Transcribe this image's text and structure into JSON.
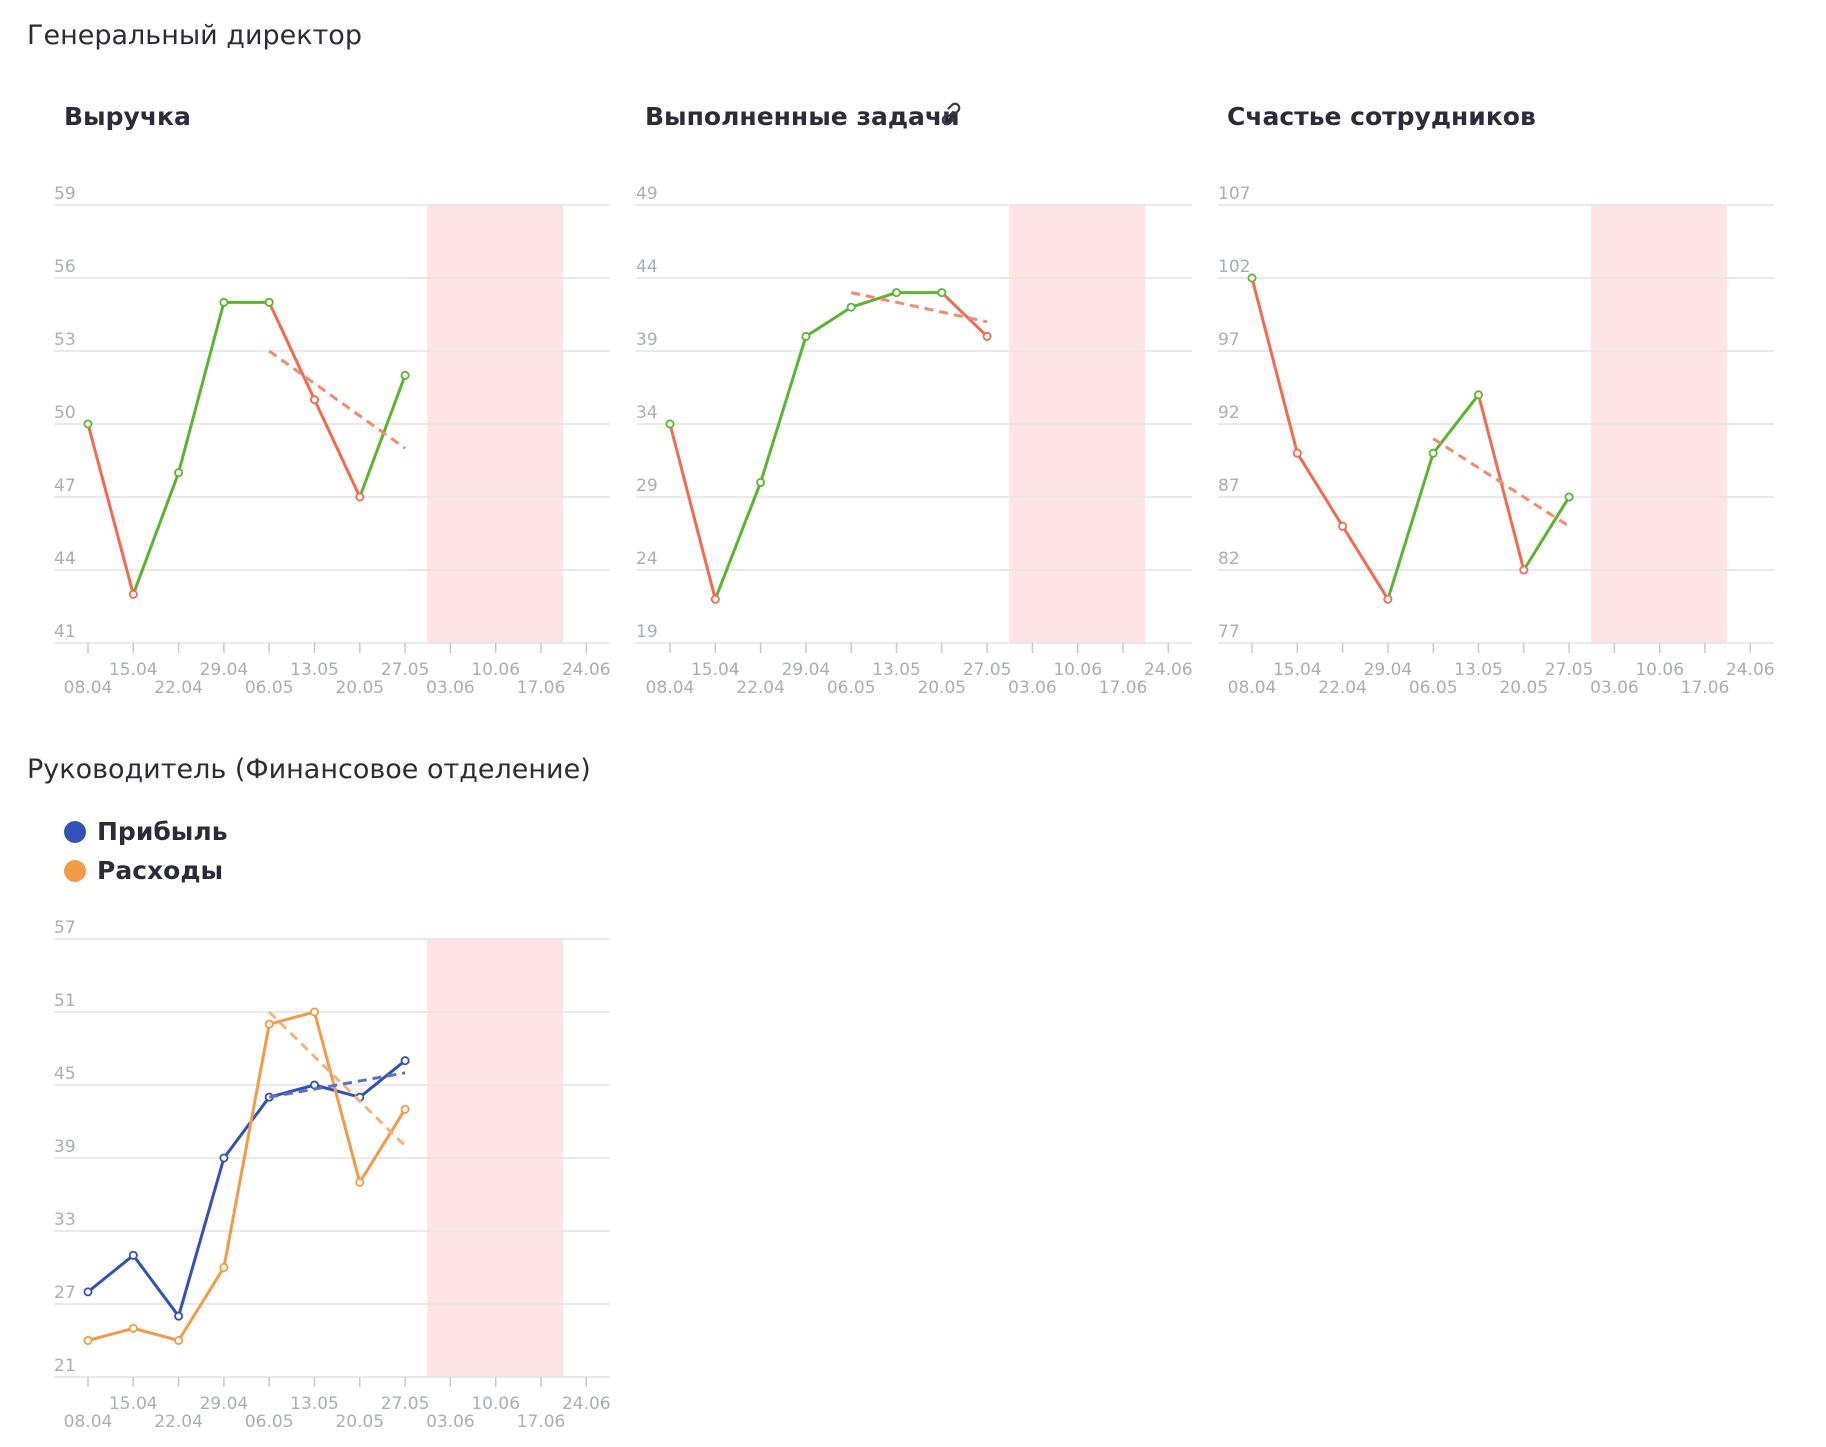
{
  "sections": [
    {
      "title": "Генеральный директор"
    },
    {
      "title": "Руководитель (Финансовое отделение)"
    }
  ],
  "colors": {
    "up": "#5ab52e",
    "down": "#f26b4f",
    "trend": "#f58a6e",
    "forecast_band": "#fde3e6",
    "grid": "#e4e4e4",
    "tick_text": "#a9adb6",
    "profit": "#3451b8",
    "expenses": "#f39a47"
  },
  "x_ticks": [
    "08.04",
    "15.04",
    "22.04",
    "29.04",
    "06.05",
    "13.05",
    "20.05",
    "27.05",
    "03.06",
    "10.06",
    "17.06",
    "24.06"
  ],
  "charts": [
    {
      "title": "Выручка",
      "has_link_icon": false,
      "chart_data": {
        "type": "line",
        "x": [
          "08.04",
          "15.04",
          "22.04",
          "29.04",
          "06.05",
          "13.05",
          "20.05",
          "27.05"
        ],
        "y_ticks": [
          "41",
          "44",
          "47",
          "50",
          "53",
          "56",
          "59"
        ],
        "ylim": [
          41,
          59
        ],
        "series": [
          {
            "values": [
              50,
              43,
              48,
              55,
              55,
              51,
              47,
              52
            ],
            "color_mode": "updown"
          }
        ],
        "trend": {
          "from_x": "06.05",
          "to_x": "27.05",
          "from_y": 53,
          "to_y": 49,
          "color": "trend"
        },
        "forecast_band": {
          "from_x": "27.05",
          "to_x": "17.06"
        }
      }
    },
    {
      "title": "Выполненные задачи",
      "has_link_icon": true,
      "link_icon": "link-icon",
      "chart_data": {
        "type": "line",
        "x": [
          "08.04",
          "15.04",
          "22.04",
          "29.04",
          "06.05",
          "13.05",
          "20.05",
          "27.05"
        ],
        "y_ticks": [
          "19",
          "24",
          "29",
          "34",
          "39",
          "44",
          "49"
        ],
        "ylim": [
          19,
          49
        ],
        "series": [
          {
            "values": [
              34,
              22,
              30,
              40,
              42,
              43,
              43,
              40
            ],
            "color_mode": "updown"
          }
        ],
        "trend": {
          "from_x": "06.05",
          "to_x": "27.05",
          "from_y": 43,
          "to_y": 41,
          "color": "trend"
        },
        "forecast_band": {
          "from_x": "27.05",
          "to_x": "17.06"
        }
      }
    },
    {
      "title": "Счастье сотрудников",
      "has_link_icon": false,
      "chart_data": {
        "type": "line",
        "x": [
          "08.04",
          "15.04",
          "22.04",
          "29.04",
          "06.05",
          "13.05",
          "20.05",
          "27.05"
        ],
        "y_ticks": [
          "77",
          "82",
          "87",
          "92",
          "97",
          "102",
          "107"
        ],
        "ylim": [
          77,
          107
        ],
        "series": [
          {
            "values": [
              102,
              90,
              85,
              80,
              90,
              94,
              82,
              87
            ],
            "color_mode": "updown"
          }
        ],
        "trend": {
          "from_x": "06.05",
          "to_x": "27.05",
          "from_y": 91,
          "to_y": 85,
          "color": "trend"
        },
        "forecast_band": {
          "from_x": "27.05",
          "to_x": "17.06"
        }
      }
    },
    {
      "title": "",
      "has_link_icon": false,
      "legend": [
        {
          "label": "Прибыль",
          "color": "#3451b8"
        },
        {
          "label": "Расходы",
          "color": "#f39a47"
        }
      ],
      "chart_data": {
        "type": "line",
        "x": [
          "08.04",
          "15.04",
          "22.04",
          "29.04",
          "06.05",
          "13.05",
          "20.05",
          "27.05"
        ],
        "y_ticks": [
          "21",
          "27",
          "33",
          "39",
          "45",
          "51",
          "57"
        ],
        "ylim": [
          21,
          57
        ],
        "series": [
          {
            "name": "Прибыль",
            "values": [
              28,
              31,
              26,
              39,
              44,
              45,
              44,
              47
            ],
            "color": "#3451b8"
          },
          {
            "name": "Расходы",
            "values": [
              24,
              25,
              24,
              30,
              50,
              51,
              37,
              43
            ],
            "color": "#f39a47"
          }
        ],
        "trends": [
          {
            "series": "Прибыль",
            "from_x": "06.05",
            "to_x": "27.05",
            "from_y": 44,
            "to_y": 46,
            "color": "#5a6fcb"
          },
          {
            "series": "Расходы",
            "from_x": "06.05",
            "to_x": "27.05",
            "from_y": 51,
            "to_y": 40,
            "color": "#f5b27a"
          }
        ],
        "forecast_band": {
          "from_x": "27.05",
          "to_x": "17.06"
        }
      }
    }
  ]
}
